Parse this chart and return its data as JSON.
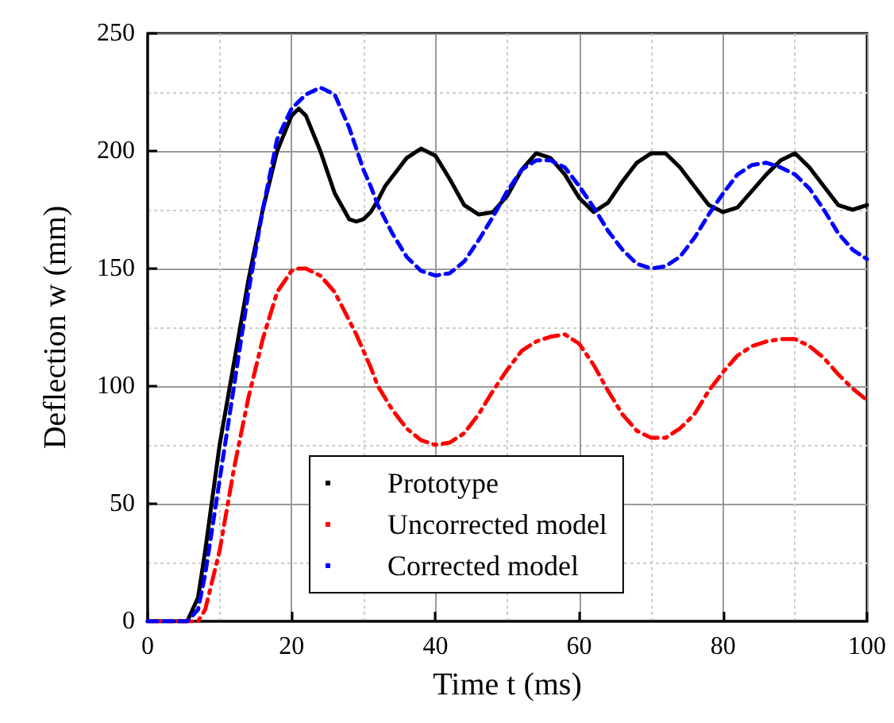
{
  "chart_data": {
    "type": "line",
    "xlabel": "Time t (ms)",
    "ylabel": "Deflection w (mm)",
    "x": [
      0,
      5.5,
      7,
      8,
      10,
      12,
      14,
      16,
      18,
      20,
      21,
      22,
      24,
      26,
      28,
      29,
      30,
      31,
      32,
      33,
      34,
      35,
      36,
      38,
      40,
      42,
      44,
      46,
      48,
      50,
      52,
      54,
      56,
      58,
      60,
      62,
      64,
      66,
      68,
      70,
      72,
      74,
      76,
      78,
      80,
      82,
      84,
      86,
      88,
      90,
      92,
      94,
      96,
      98,
      100
    ],
    "series": [
      {
        "name": "Prototype",
        "color": "#000000",
        "line_style": "solid",
        "values": [
          0,
          0,
          10,
          30,
          75,
          110,
          145,
          175,
          200,
          215,
          218,
          215,
          200,
          182,
          171,
          170,
          171,
          174,
          179,
          185,
          189,
          193,
          197,
          201,
          198,
          188,
          177,
          173,
          174,
          181,
          192,
          199,
          197,
          190,
          180,
          174,
          178,
          187,
          195,
          199,
          199,
          193,
          185,
          177,
          174,
          176,
          183,
          190,
          196,
          199,
          193,
          185,
          177,
          175,
          177
        ]
      },
      {
        "name": "Uncorrected model",
        "color": "#ff0000",
        "line_style": "dashdot",
        "values": [
          0,
          0,
          0,
          5,
          30,
          65,
          95,
          120,
          140,
          149,
          150,
          150,
          147,
          140,
          128,
          122,
          115,
          108,
          100,
          95,
          90,
          86,
          82,
          77,
          75,
          76,
          80,
          88,
          98,
          107,
          115,
          119,
          121,
          122,
          118,
          109,
          98,
          88,
          81,
          78,
          78,
          82,
          88,
          98,
          106,
          113,
          117,
          119,
          120,
          120,
          117,
          112,
          105,
          99,
          94
        ]
      },
      {
        "name": "Corrected model",
        "color": "#0000ff",
        "line_style": "dashed",
        "values": [
          0,
          0,
          5,
          20,
          60,
          100,
          140,
          175,
          205,
          218,
          221,
          224,
          227,
          224,
          210,
          201,
          192,
          185,
          177,
          171,
          165,
          160,
          155,
          149,
          147,
          148,
          153,
          162,
          172,
          183,
          192,
          196,
          196,
          193,
          185,
          176,
          166,
          158,
          152,
          150,
          151,
          155,
          163,
          173,
          182,
          190,
          194,
          195,
          193,
          190,
          184,
          175,
          165,
          158,
          154
        ]
      }
    ],
    "xlim": [
      0,
      100
    ],
    "xticks": [
      0,
      20,
      40,
      60,
      80,
      100
    ],
    "ylim": [
      0,
      250
    ],
    "yticks": [
      0,
      50,
      100,
      150,
      200,
      250
    ],
    "grid": true,
    "legend": "bottom",
    "marker": "none"
  }
}
